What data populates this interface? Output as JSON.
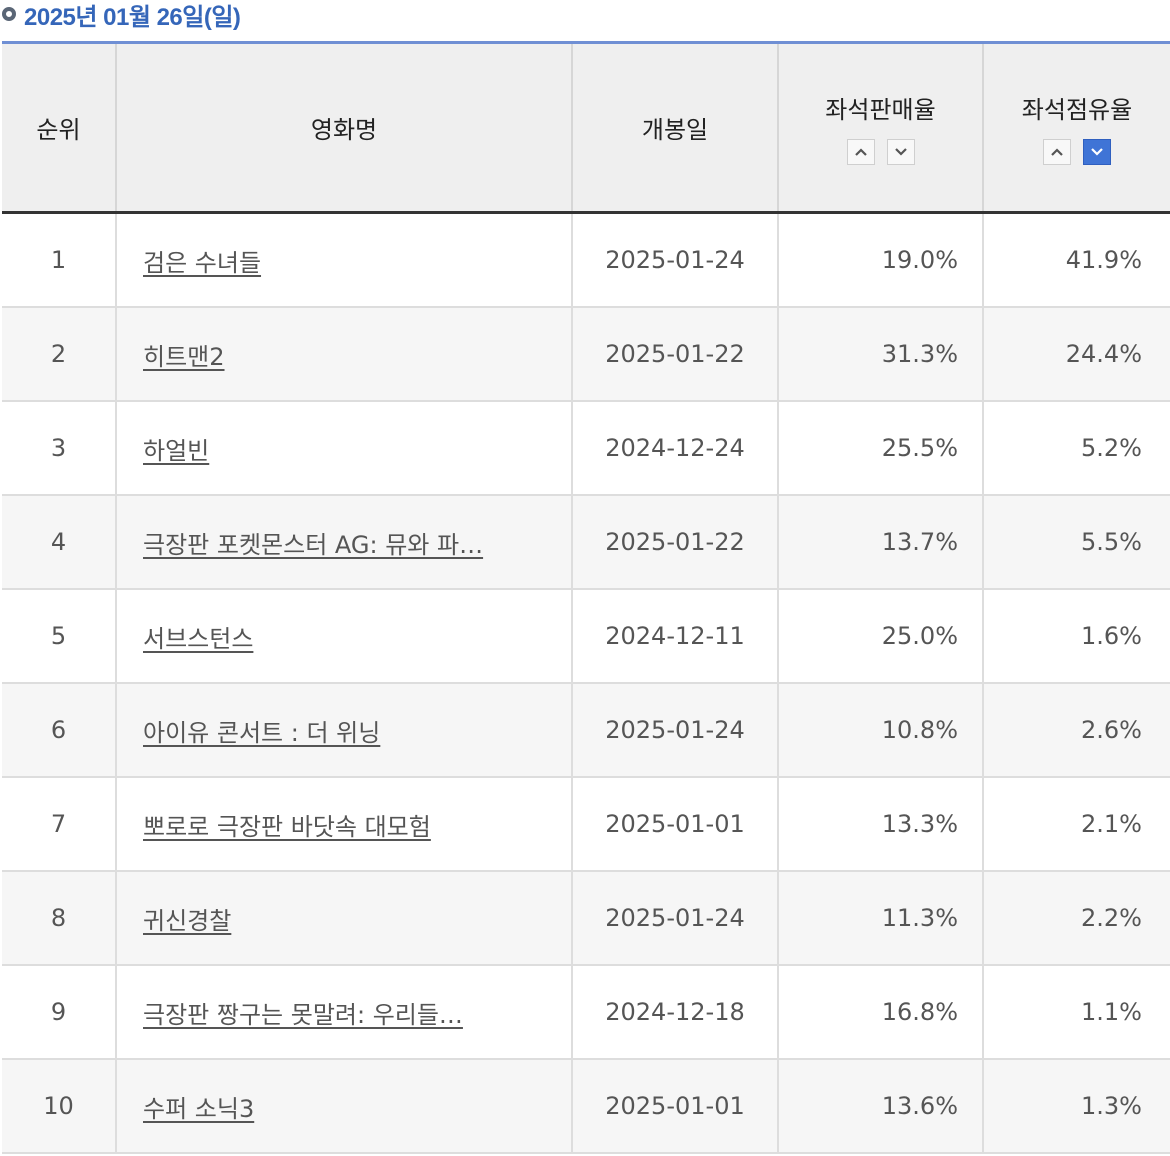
{
  "header": {
    "date_title": "2025년 01월 26일(일)"
  },
  "table": {
    "columns": {
      "rank": "순위",
      "title": "영화명",
      "release": "개봉일",
      "sales_rate": "좌석판매율",
      "share_rate": "좌석점유율"
    },
    "sort": {
      "active_column": "share_rate",
      "active_direction": "down"
    },
    "rows": [
      {
        "rank": "1",
        "title": "검은 수녀들",
        "release": "2025-01-24",
        "sales": "19.0%",
        "share": "41.9%"
      },
      {
        "rank": "2",
        "title": "히트맨2",
        "release": "2025-01-22",
        "sales": "31.3%",
        "share": "24.4%"
      },
      {
        "rank": "3",
        "title": "하얼빈",
        "release": "2024-12-24",
        "sales": "25.5%",
        "share": "5.2%"
      },
      {
        "rank": "4",
        "title": "극장판 포켓몬스터 AG: 뮤와 파…",
        "release": "2025-01-22",
        "sales": "13.7%",
        "share": "5.5%"
      },
      {
        "rank": "5",
        "title": "서브스턴스",
        "release": "2024-12-11",
        "sales": "25.0%",
        "share": "1.6%"
      },
      {
        "rank": "6",
        "title": "아이유 콘서트 : 더 위닝",
        "release": "2025-01-24",
        "sales": "10.8%",
        "share": "2.6%"
      },
      {
        "rank": "7",
        "title": "뽀로로 극장판 바닷속 대모험",
        "release": "2025-01-01",
        "sales": "13.3%",
        "share": "2.1%"
      },
      {
        "rank": "8",
        "title": "귀신경찰",
        "release": "2025-01-24",
        "sales": "11.3%",
        "share": "2.2%"
      },
      {
        "rank": "9",
        "title": "극장판 짱구는 못말려: 우리들…",
        "release": "2024-12-18",
        "sales": "16.8%",
        "share": "1.1%"
      },
      {
        "rank": "10",
        "title": "수퍼 소닉3",
        "release": "2025-01-01",
        "sales": "13.6%",
        "share": "1.3%"
      }
    ]
  },
  "colors": {
    "accent": "#3566b9",
    "active_sort": "#3f74d6",
    "header_bg": "#efefef"
  },
  "icons": {
    "sort_up": "chevron-up-icon",
    "sort_down": "chevron-down-icon",
    "bullet": "circle-icon"
  }
}
